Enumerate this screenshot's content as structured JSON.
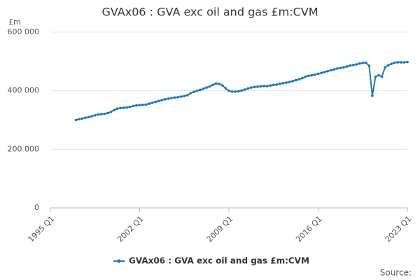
{
  "chart_data": {
    "type": "line",
    "title": "GVAx06 : GVA exc oil and gas £m:CVM",
    "y_unit": "£m",
    "source": "Source:",
    "categories": [
      "1995 Q1",
      null,
      null,
      null,
      null,
      null,
      null,
      null,
      null,
      null,
      null,
      null,
      null,
      null,
      null,
      null,
      null,
      null,
      null,
      null,
      null,
      null,
      null,
      null,
      null,
      null,
      null,
      null,
      "2002 Q1",
      null,
      null,
      null,
      null,
      null,
      null,
      null,
      null,
      null,
      null,
      null,
      null,
      null,
      null,
      null,
      null,
      null,
      null,
      null,
      null,
      null,
      null,
      null,
      null,
      null,
      null,
      null,
      "2009 Q1",
      null,
      null,
      null,
      null,
      null,
      null,
      null,
      null,
      null,
      null,
      null,
      null,
      null,
      null,
      null,
      null,
      null,
      null,
      null,
      null,
      null,
      null,
      null,
      null,
      null,
      null,
      null,
      "2016 Q1",
      null,
      null,
      null,
      null,
      null,
      null,
      null,
      null,
      null,
      null,
      null,
      null,
      null,
      null,
      null,
      null,
      null,
      null,
      null,
      null,
      null,
      null,
      null,
      null,
      null,
      null,
      null,
      "2023 Q1"
    ],
    "series": [
      {
        "name": "GVAx06 : GVA exc oil and gas £m:CVM",
        "color": "#1f78b4",
        "values": [
          null,
          null,
          null,
          null,
          null,
          null,
          null,
          null,
          300000,
          303000,
          305000,
          308000,
          310000,
          313000,
          316000,
          319000,
          320000,
          321000,
          324000,
          328000,
          334000,
          339000,
          341000,
          342000,
          343000,
          345000,
          348000,
          350000,
          351000,
          352000,
          353000,
          356000,
          359000,
          362000,
          365000,
          368000,
          371000,
          373000,
          375000,
          377000,
          378000,
          380000,
          382000,
          385000,
          392000,
          396000,
          400000,
          403000,
          407000,
          411000,
          415000,
          420000,
          425000,
          423000,
          418000,
          408000,
          400000,
          397000,
          397000,
          398000,
          401000,
          404000,
          408000,
          411000,
          413000,
          414000,
          415000,
          416000,
          416000,
          418000,
          420000,
          421000,
          424000,
          426000,
          428000,
          430000,
          433000,
          436000,
          439000,
          443000,
          448000,
          451000,
          453000,
          455000,
          458000,
          461000,
          464000,
          467000,
          470000,
          473000,
          476000,
          478000,
          480000,
          483000,
          486000,
          488000,
          490000,
          493000,
          495000,
          496000,
          485000,
          383000,
          448000,
          453000,
          448000,
          480000,
          487000,
          492000,
          496000,
          497000,
          497000,
          497000,
          498000
        ]
      }
    ],
    "ylim": [
      0,
      600000
    ],
    "yticks": [
      0,
      {
        "value": 200000,
        "label": "200 000"
      },
      {
        "value": 400000,
        "label": "400 000"
      },
      {
        "value": 600000,
        "label": "600 000"
      }
    ],
    "grid": true,
    "legend": "bottom"
  }
}
